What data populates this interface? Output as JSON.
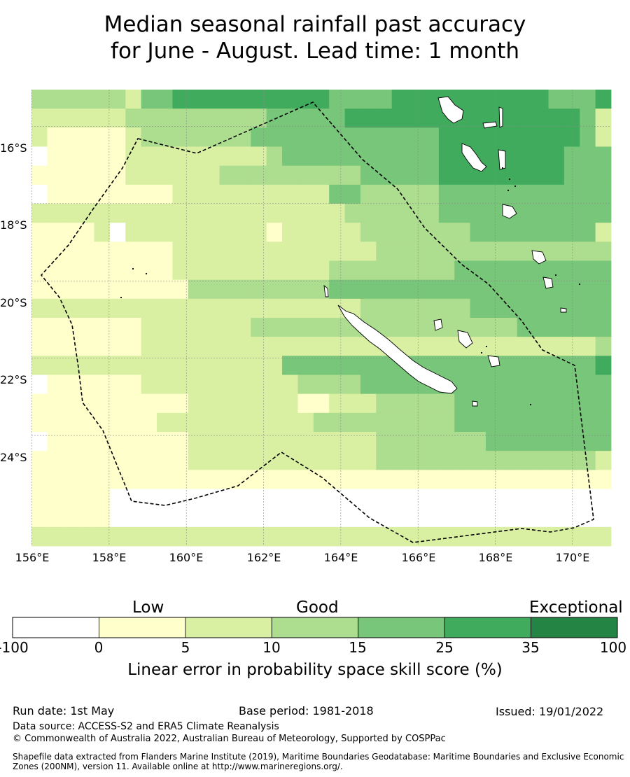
{
  "title": {
    "line1": "Median seasonal rainfall past accuracy",
    "line2": "for June - August. Lead time: 1 month"
  },
  "map": {
    "lat_labels": [
      "16°S",
      "18°S",
      "20°S",
      "22°S",
      "24°S"
    ],
    "lon_labels": [
      "156°E",
      "158°E",
      "160°E",
      "162°E",
      "164°E",
      "166°E",
      "168°E",
      "170°E"
    ],
    "lon_range": [
      155.99,
      171.0
    ],
    "lat_range": [
      -26.86,
      -15.05
    ],
    "grid_lats": [
      -16,
      -18,
      -20,
      -22,
      -24
    ],
    "grid_lons": [
      156,
      158,
      160,
      162,
      164,
      166,
      168,
      170
    ],
    "boundary_style": "dashed",
    "colors": [
      "#ffffff",
      "#ffffcc",
      "#d9f0a3",
      "#addd8e",
      "#78c679",
      "#41ab5d",
      "#238443"
    ],
    "skill_classes_rows": [
      "3333332445555555555444455555555554445",
      "2222223333333334444455555555555555542",
      "2111112333333344444444444455555555542",
      "0111112222222223444444444455555555444",
      "1111112222223333333334444455555555444",
      "0111111112222222222443333344444444444",
      "2222222222222222222233333344444444444",
      "1111202222222221222223333333444444442",
      "1111111112222222222222333333333333333",
      "1111111112222222222333333334444444444",
      "1111111111333333333444444444444444444",
      "2222222222222222222223333333444444444",
      "1111111222222233333333333333333444444",
      "1111111222222222222222222222222222223",
      "2222222222222222444444444444444444445",
      "0111111222222222233334444444444444444",
      "1111111111222222211222333334444444444",
      "1111111122222222223333333334444444444",
      "0111111111222222222222333333344444444",
      "1111111111222222222222333333333333332",
      "1111111111111111111111111111111111111",
      "1111100000000000000000000000000000000",
      "1111100000000000000000000000000000000",
      "2222222222222222222222222222222222222"
    ]
  },
  "legend": {
    "categories": [
      "Low",
      "Good",
      "Exceptional"
    ],
    "ticks": [
      "-100",
      "0",
      "5",
      "10",
      "15",
      "25",
      "35",
      "100"
    ],
    "label": "Linear error in probability space skill score (%)"
  },
  "footer": {
    "run_date": "Run date: 1st May",
    "base_period": "Base period: 1981-2018",
    "issued": "Issued: 19/01/2022",
    "data_source": "Data source: ACCESS-S2 and ERA5 Climate Reanalysis",
    "copyright": "© Commonwealth of Australia 2022, Australian Bureau of Meteorology, Supported by COSPPac",
    "shapefile_line1": "Shapefile data extracted from Flanders Marine Institute (2019), Maritime Boundaries Geodatabase: Maritime Boundaries and Exclusive Economic",
    "shapefile_line2": "Zones (200NM), version 11. Available online at http://www.marineregions.org/."
  }
}
